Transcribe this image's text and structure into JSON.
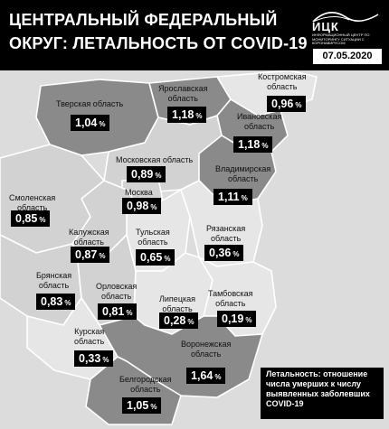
{
  "header": {
    "title_line1": "ЦЕНТРАЛЬНЫЙ ФЕДЕРАЛЬНЫЙ",
    "title_line2": "ОКРУГ: ЛЕТАЛЬНОСТЬ ОТ COVID-19",
    "logo_text": "ИЦК",
    "logo_subtext": "ИНФОРМАЦИОННЫЙ ЦЕНТР ПО МОНИТОРИНГУ СИТУАЦИИ С КОРОНАВИРУСОМ",
    "date": "07.05.2020"
  },
  "colors": {
    "header_bg": "#000000",
    "value_box_bg": "#000000",
    "region_dark": "#8a8a8a",
    "region_mid": "#b0b0b0",
    "region_light": "#d2d2d2",
    "region_lightest": "#e6e6e6"
  },
  "regions": [
    {
      "name_lines": [
        "Тверская область"
      ],
      "value": "1,04",
      "unit": "%",
      "shade": "dark"
    },
    {
      "name_lines": [
        "Ярославская",
        "область"
      ],
      "value": "1,18",
      "unit": "%",
      "shade": "dark"
    },
    {
      "name_lines": [
        "Костромская",
        "область"
      ],
      "value": "0,96",
      "unit": "%",
      "shade": "lightest"
    },
    {
      "name_lines": [
        "Ивановская",
        "область"
      ],
      "value": "1,18",
      "unit": "%",
      "shade": "dark"
    },
    {
      "name_lines": [
        "Московская область"
      ],
      "value": "0,89",
      "unit": "%",
      "shade": "light"
    },
    {
      "name_lines": [
        "Москва"
      ],
      "value": "0,98",
      "unit": "%",
      "shade": "light"
    },
    {
      "name_lines": [
        "Владимирская",
        "область"
      ],
      "value": "1,11",
      "unit": "%",
      "shade": "dark"
    },
    {
      "name_lines": [
        "Смоленская",
        "область"
      ],
      "value": "0,85",
      "unit": "%",
      "shade": "light"
    },
    {
      "name_lines": [
        "Калужская",
        "область"
      ],
      "value": "0,87",
      "unit": "%",
      "shade": "light"
    },
    {
      "name_lines": [
        "Тульская",
        "область"
      ],
      "value": "0,65",
      "unit": "%",
      "shade": "lightest"
    },
    {
      "name_lines": [
        "Рязанская",
        "область"
      ],
      "value": "0,36",
      "unit": "%",
      "shade": "lightest"
    },
    {
      "name_lines": [
        "Брянская",
        "область"
      ],
      "value": "0,83",
      "unit": "%",
      "shade": "light"
    },
    {
      "name_lines": [
        "Орловская",
        "область"
      ],
      "value": "0,81",
      "unit": "%",
      "shade": "light"
    },
    {
      "name_lines": [
        "Липецкая",
        "область"
      ],
      "value": "0,28",
      "unit": "%",
      "shade": "lightest"
    },
    {
      "name_lines": [
        "Тамбовская",
        "область"
      ],
      "value": "0,19",
      "unit": "%",
      "shade": "lightest"
    },
    {
      "name_lines": [
        "Курская",
        "область"
      ],
      "value": "0,33",
      "unit": "%",
      "shade": "lightest"
    },
    {
      "name_lines": [
        "Воронежская",
        "область"
      ],
      "value": "1,64",
      "unit": "%",
      "shade": "dark"
    },
    {
      "name_lines": [
        "Белгородская",
        "область"
      ],
      "value": "1,05",
      "unit": "%",
      "shade": "dark"
    }
  ],
  "legend": {
    "text_lines": [
      "Летальность: отношение",
      "числа умерших к числу",
      "выявленных заболевших",
      "COVID-19"
    ]
  }
}
